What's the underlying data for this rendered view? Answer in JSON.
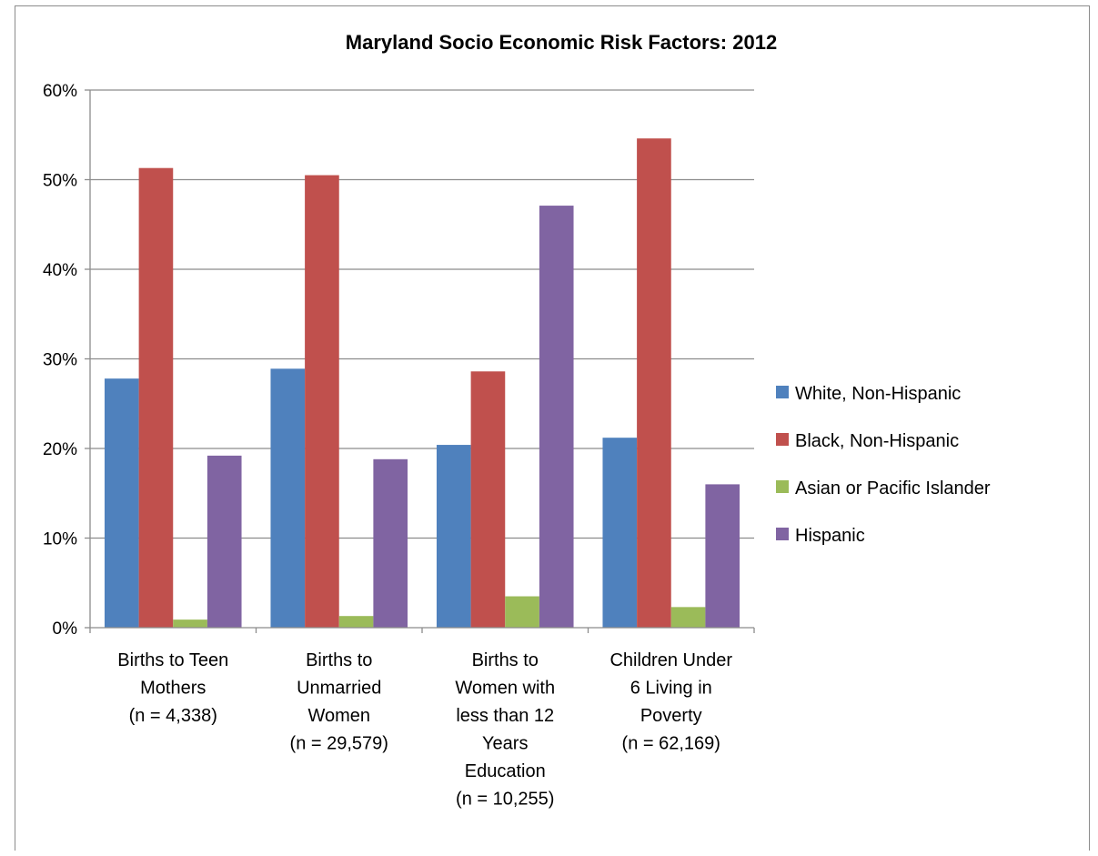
{
  "chart_data": {
    "type": "bar",
    "title": "Maryland Socio Economic Risk Factors: 2012",
    "xlabel": "",
    "ylabel": "",
    "ylim": [
      0,
      0.6
    ],
    "yticks": [
      0,
      0.1,
      0.2,
      0.3,
      0.4,
      0.5,
      0.6
    ],
    "ytick_labels": [
      "0%",
      "10%",
      "20%",
      "30%",
      "40%",
      "50%",
      "60%"
    ],
    "grid": true,
    "legend_position": "right",
    "categories": [
      [
        "Births to Teen",
        "Mothers",
        "(n = 4,338)"
      ],
      [
        "Births to",
        "Unmarried",
        "Women",
        "(n = 29,579)"
      ],
      [
        "Births to",
        "Women with",
        "less than 12",
        "Years",
        "Education",
        "(n = 10,255)"
      ],
      [
        "Children Under",
        "6 Living in",
        "Poverty",
        "(n = 62,169)"
      ]
    ],
    "series": [
      {
        "name": "White, Non-Hispanic",
        "color": "#4f81bd",
        "values": [
          0.278,
          0.289,
          0.204,
          0.212
        ]
      },
      {
        "name": "Black, Non-Hispanic",
        "color": "#c0504d",
        "values": [
          0.513,
          0.505,
          0.286,
          0.546
        ]
      },
      {
        "name": "Asian or Pacific Islander",
        "color": "#9bbb59",
        "values": [
          0.009,
          0.013,
          0.035,
          0.023
        ]
      },
      {
        "name": "Hispanic",
        "color": "#8064a2",
        "values": [
          0.192,
          0.188,
          0.471,
          0.16
        ]
      }
    ]
  }
}
